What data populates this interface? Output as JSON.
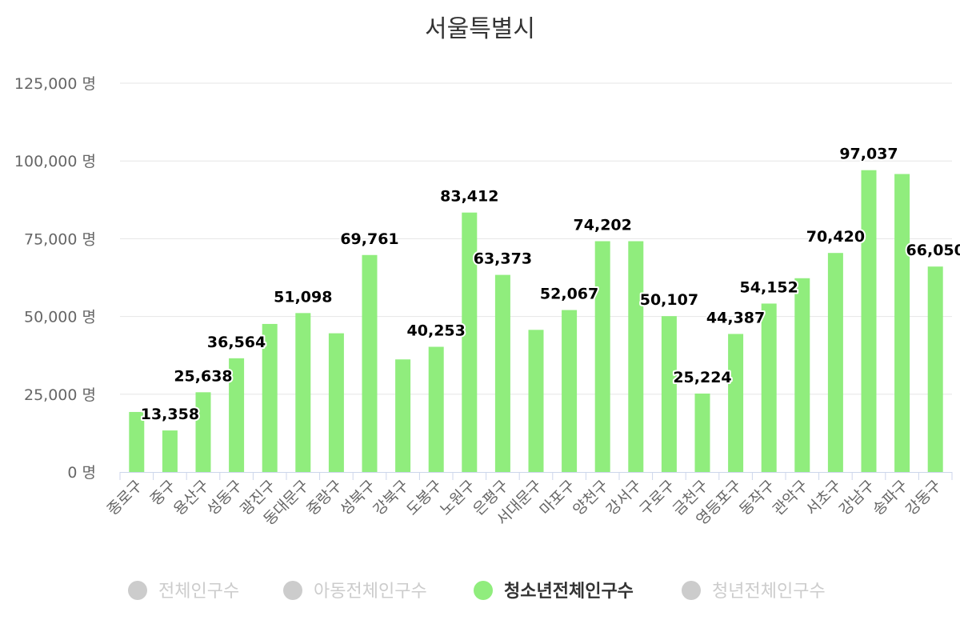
{
  "chart_data": {
    "type": "bar",
    "title": "서울특별시",
    "unit": "명",
    "xlabel": "",
    "ylabel": "",
    "ylim": [
      0,
      125000
    ],
    "yticks": [
      0,
      25000,
      50000,
      75000,
      100000,
      125000
    ],
    "ytick_labels": [
      "0 명",
      "25,000 명",
      "50,000 명",
      "75,000 명",
      "100,000 명",
      "125,000 명"
    ],
    "grid": true,
    "categories": [
      "종로구",
      "중구",
      "용산구",
      "성동구",
      "광진구",
      "동대문구",
      "중랑구",
      "성북구",
      "강북구",
      "도봉구",
      "노원구",
      "은평구",
      "서대문구",
      "마포구",
      "양천구",
      "강서구",
      "구로구",
      "금천구",
      "영등포구",
      "동작구",
      "관악구",
      "서초구",
      "강남구",
      "송파구",
      "강동구"
    ],
    "series": [
      {
        "name": "청소년전체인구수",
        "color": "#90ed7d",
        "values": [
          19300,
          13358,
          25638,
          36564,
          47600,
          51098,
          44600,
          69761,
          36200,
          40253,
          83412,
          63373,
          45700,
          52067,
          74202,
          74200,
          50107,
          25224,
          44387,
          54152,
          62300,
          70420,
          97037,
          95800,
          66050
        ]
      }
    ],
    "data_labels": [
      {
        "category": "중구",
        "text": "13,358"
      },
      {
        "category": "용산구",
        "text": "25,638"
      },
      {
        "category": "성동구",
        "text": "36,564"
      },
      {
        "category": "동대문구",
        "text": "51,098"
      },
      {
        "category": "성북구",
        "text": "69,761"
      },
      {
        "category": "도봉구",
        "text": "40,253"
      },
      {
        "category": "노원구",
        "text": "83,412"
      },
      {
        "category": "은평구",
        "text": "63,373"
      },
      {
        "category": "마포구",
        "text": "52,067"
      },
      {
        "category": "양천구",
        "text": "74,202"
      },
      {
        "category": "구로구",
        "text": "50,107"
      },
      {
        "category": "금천구",
        "text": "25,224"
      },
      {
        "category": "영등포구",
        "text": "44,387"
      },
      {
        "category": "동작구",
        "text": "54,152"
      },
      {
        "category": "서초구",
        "text": "70,420"
      },
      {
        "category": "강남구",
        "text": "97,037"
      },
      {
        "category": "강동구",
        "text": "66,050"
      }
    ],
    "legend": {
      "position": "bottom",
      "items": [
        {
          "label": "전체인구수",
          "color": "#cccccc",
          "active": false
        },
        {
          "label": "아동전체인구수",
          "color": "#cccccc",
          "active": false
        },
        {
          "label": "청소년전체인구수",
          "color": "#90ed7d",
          "active": true
        },
        {
          "label": "청년전체인구수",
          "color": "#cccccc",
          "active": false
        }
      ]
    },
    "colors": {
      "grid": "#e6e6e6",
      "axis": "#ccd6eb",
      "title": "#333333",
      "tick_text": "#666666"
    }
  }
}
